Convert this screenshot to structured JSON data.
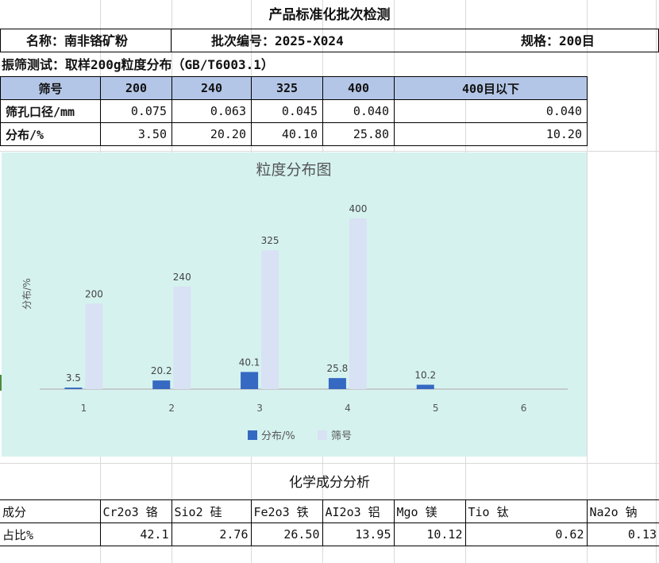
{
  "title": "产品标准化批次检测",
  "info": {
    "name": "名称：南非铬矿粉",
    "batch": "批次编号：2025-X024",
    "spec": "规格：200目"
  },
  "sieve_test": {
    "subtitle": "振筛测试：取样200g粒度分布（GB/T6003.1）",
    "headers": [
      "筛号",
      "200",
      "240",
      "325",
      "400",
      "400目以下"
    ],
    "aperture_row": [
      "筛孔口径/mm",
      "0.075",
      "0.063",
      "0.045",
      "0.040",
      "0.040"
    ],
    "distribution_row": [
      "分布/%",
      "3.50",
      "20.20",
      "40.10",
      "25.80",
      "10.20"
    ]
  },
  "chart_data": {
    "type": "bar",
    "title": "粒度分布图",
    "ylabel": "分布/%",
    "xlabel": "",
    "categories": [
      "1",
      "2",
      "3",
      "4",
      "5",
      "6"
    ],
    "ylim": [
      0,
      100
    ],
    "legend_position": "bottom",
    "series": [
      {
        "name": "分布/%",
        "color": "#3569c2",
        "values": [
          3.5,
          20.2,
          40.1,
          25.8,
          10.2,
          null
        ],
        "labels": [
          "3.5",
          "20.2",
          "40.1",
          "25.8",
          "10.2",
          ""
        ]
      },
      {
        "name": "筛号",
        "color": "#d9e1f4",
        "values": [
          200,
          240,
          325,
          400,
          null,
          null
        ],
        "labels": [
          "200",
          "240",
          "325",
          "400",
          "",
          ""
        ]
      }
    ]
  },
  "chemical": {
    "title": "化学成分分析",
    "header": [
      "成分",
      "Cr2o3 铬",
      "Sio2 硅",
      "Fe2o3 铁",
      "AI2o3 铝",
      "Mgo 镁",
      "Tio 钛",
      "Na2o 钠"
    ],
    "values": [
      "占比%",
      "42.1",
      "2.76",
      "26.50",
      "13.95",
      "10.12",
      "0.62",
      "0.13"
    ]
  }
}
